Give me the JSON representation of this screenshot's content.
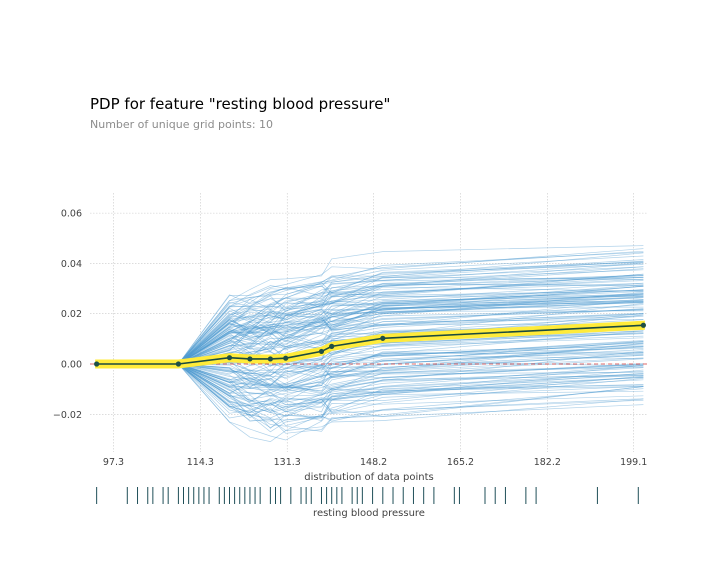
{
  "title": "PDP for feature \"resting blood pressure\"",
  "subtitle": "Number of unique grid points: 10",
  "colors": {
    "ice_line": "#4f9bd0",
    "pdp_line": "#1a4a3f",
    "pdp_band": "#ffeb3b",
    "pdp_marker": "#1f4f45",
    "zero_line": "#d83c3c",
    "grid": "#c8c8c8",
    "rug": "#1f4f58"
  },
  "chart_data": {
    "type": "line",
    "grid": true,
    "xlabel": "distribution of data points",
    "rug_label": "resting blood pressure",
    "xlim": [
      92.7,
      201.9
    ],
    "ylim": [
      -0.035,
      0.068
    ],
    "x_ticks": [
      97.3,
      114.3,
      131.3,
      148.2,
      165.2,
      182.2,
      199.1
    ],
    "x_tick_labels": [
      "97.3",
      "114.3",
      "131.3",
      "148.2",
      "165.2",
      "182.2",
      "199.1"
    ],
    "y_ticks": [
      -0.02,
      0.0,
      0.02,
      0.04,
      0.06
    ],
    "y_tick_labels": [
      "−0.02",
      "0.00",
      "0.02",
      "0.04",
      "0.06"
    ],
    "series": [
      {
        "x": [
          94,
          110,
          120,
          124,
          128,
          131,
          138,
          140,
          150,
          201
        ],
        "y": [
          0.0,
          0.0,
          0.0025,
          0.002,
          0.002,
          0.0023,
          0.005,
          0.007,
          0.0102,
          0.0154
        ]
      }
    ],
    "ice_curve_count": 160,
    "rug_points": [
      94,
      100,
      102,
      104,
      105,
      107,
      108,
      110,
      111,
      112,
      113,
      114,
      115,
      116,
      118,
      119,
      120,
      121,
      122,
      123,
      124,
      125,
      126,
      128,
      129,
      130,
      132,
      134,
      135,
      136,
      138,
      139,
      140,
      141,
      142,
      144,
      145,
      146,
      148,
      150,
      152,
      154,
      156,
      158,
      160,
      164,
      165,
      170,
      172,
      174,
      178,
      180,
      192,
      200
    ]
  }
}
